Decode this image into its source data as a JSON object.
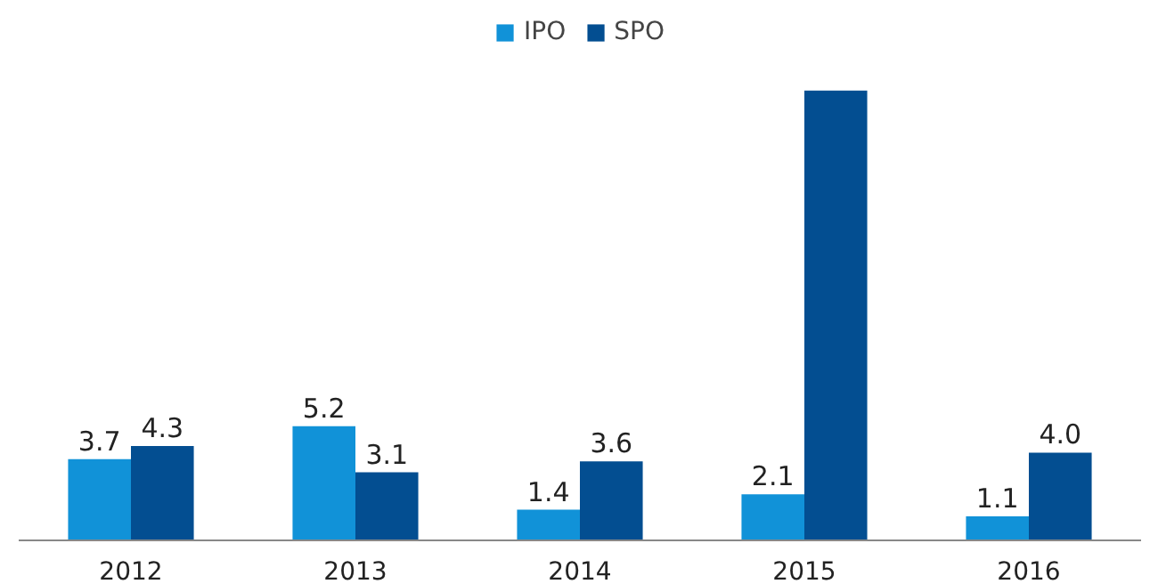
{
  "chart_data": {
    "type": "bar",
    "categories": [
      "2012",
      "2013",
      "2014",
      "2015",
      "2016"
    ],
    "series": [
      {
        "name": "IPO",
        "color": "#1192d8",
        "values": [
          3.7,
          5.2,
          1.4,
          2.1,
          1.1
        ],
        "value_labels": [
          "3.7",
          "5.2",
          "1.4",
          "2.1",
          "1.1"
        ]
      },
      {
        "name": "SPO",
        "color": "#034e91",
        "values": [
          4.3,
          3.1,
          3.6,
          20.5,
          4.0
        ],
        "value_labels": [
          "4.3",
          "3.1",
          "3.6",
          null,
          "4.0"
        ]
      }
    ],
    "legend": "top"
  }
}
